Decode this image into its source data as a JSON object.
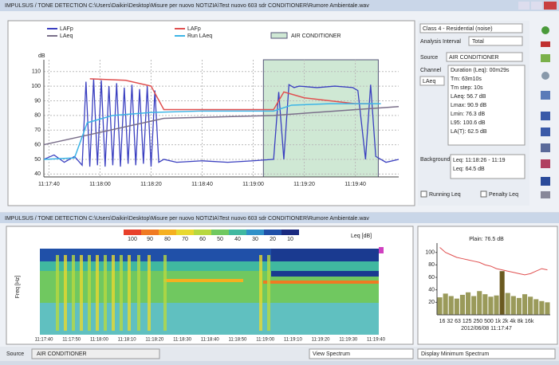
{
  "top_window": {
    "title": "IMPULSUS / TONE DETECTION C:\\Users\\Daikin\\Desktop\\Misure per nuovo NOTIZIA\\Test nuovo 603 sdr CONDITIONER\\Rumore Ambientale.wav"
  },
  "bottom_window": {
    "title": "IMPULSUS / TONE DETECTION C:\\Users\\Daikin\\Desktop\\Misure per nuovo NOTIZIA\\Test nuovo 603 sdr CONDITIONER\\Rumore Ambientale.wav"
  },
  "panel": {
    "class": "Class 4 - Residential (noise)",
    "interval_label": "Analysis Interval",
    "interval": "Total",
    "source_label": "Source",
    "source": "AIR CONDITIONER",
    "channel_label": "Channel",
    "channel": "LAeq",
    "results": [
      "Duration (Leq): 00m29s",
      "Tm: 63m10s",
      "Tm step: 10s",
      "LAeq: 56.7 dB",
      "Lmax: 90.9 dB",
      "Lmin: 76.3 dB",
      "L95: 100.6 dB",
      "LA(T): 62.5 dB"
    ],
    "background_label": "Background",
    "background": [
      "Leq: 11:18:26 - 11:19",
      "Leq: 64.5 dB"
    ],
    "running_leq": "Running Leq",
    "penalty_leq": "Penalty Leq"
  },
  "chart_data": [
    {
      "type": "line",
      "y_label": "dB",
      "xlim": [
        40658,
        40797
      ],
      "ylim": [
        38,
        118
      ],
      "xticks": [
        {
          "value": 40660,
          "label": "11:17:40"
        },
        {
          "value": 40680,
          "label": "11:18:00"
        },
        {
          "value": 40700,
          "label": "11:18:20"
        },
        {
          "value": 40720,
          "label": "11:18:40"
        },
        {
          "value": 40740,
          "label": "11:19:00"
        },
        {
          "value": 40760,
          "label": "11:19:20"
        },
        {
          "value": 40780,
          "label": "11:19:40"
        }
      ],
      "yticks": [
        40,
        50,
        60,
        70,
        80,
        90,
        100,
        110
      ],
      "grid": true,
      "series": [
        {
          "name": "LAFp",
          "color": "#3a3fc0",
          "x": [
            40658,
            40662,
            40666,
            40670,
            40673,
            40674.5,
            40676,
            40677.5,
            40679,
            40680.5,
            40682,
            40683.5,
            40685,
            40686.5,
            40688,
            40689.5,
            40691,
            40692.5,
            40694,
            40695.5,
            40697,
            40698.5,
            40700,
            40701.5,
            40703,
            40705,
            40710,
            40720,
            40730,
            40740,
            40748,
            40750,
            40752,
            40754,
            40756,
            40758,
            40765,
            40772,
            40779,
            40781,
            40784,
            40786,
            40788,
            40792,
            40797
          ],
          "values": [
            50,
            53,
            48,
            52,
            46,
            103,
            45,
            105,
            46,
            104,
            45,
            100,
            46,
            102,
            45,
            99,
            47,
            101,
            46,
            98,
            47,
            100,
            45,
            97,
            48,
            50,
            48,
            49,
            48,
            49,
            50,
            96,
            50,
            101,
            99,
            100,
            99,
            100,
            99,
            97,
            50,
            101,
            52,
            48,
            50
          ]
        },
        {
          "name": "LAeq",
          "color": "#7a6f8a",
          "x": [
            40658,
            40705,
            40748,
            40797
          ],
          "values": [
            60,
            78,
            80,
            86
          ]
        },
        {
          "name": "LAFp",
          "color": "#e05050",
          "x": [
            40676,
            40690,
            40700,
            40705,
            40748,
            40752,
            40760,
            40780,
            40786
          ],
          "values": [
            105,
            104,
            100,
            84,
            84,
            96,
            92,
            88,
            88
          ]
        },
        {
          "name": "Run LAeq",
          "color": "#3cb4e6",
          "x": [
            40658,
            40670,
            40675,
            40685,
            40700,
            40720,
            40748,
            40755,
            40770,
            40790
          ],
          "values": [
            50,
            51,
            75,
            80,
            82,
            83,
            83,
            87,
            88,
            88
          ]
        }
      ],
      "region": {
        "name": "AIR CONDITIONER",
        "color": "#cfe8d4",
        "x": [
          40744,
          40789
        ]
      }
    },
    {
      "type": "bar",
      "title": "Plain: 76.5 dB",
      "ylim": [
        0,
        115
      ],
      "yticks": [
        20,
        40,
        60,
        80,
        100
      ],
      "color": "#9a9a5a",
      "highlight_color": "#6b5a20",
      "values": [
        28,
        34,
        30,
        26,
        32,
        36,
        30,
        38,
        33,
        29,
        31,
        70,
        35,
        30,
        27,
        33,
        29,
        25,
        22,
        20
      ],
      "curve": {
        "color": "#e05050",
        "values": [
          108,
          100,
          96,
          92,
          90,
          88,
          86,
          84,
          80,
          78,
          74,
          72,
          70,
          68,
          66,
          64,
          66,
          70,
          74,
          72
        ]
      },
      "x_labels": "16  32  63 125 250 500 1k 2k 4k 8k 16k",
      "date": "2012/06/08 11:17:47"
    }
  ],
  "spectrogram": {
    "y_label": "Freq [Hz]",
    "colorbar_label": "Leq [dB]",
    "colorbar_ticks": [
      100,
      90,
      80,
      70,
      60,
      50,
      40,
      30,
      20,
      10
    ],
    "colorbar_colors": [
      "#e8402a",
      "#f07a22",
      "#f5b020",
      "#e8d830",
      "#b8d840",
      "#70c860",
      "#40b8a0",
      "#3090c8",
      "#2050a8",
      "#1a2a80"
    ],
    "xticks": [
      "11:17:40",
      "11:17:50",
      "11:18:00",
      "11:18:10",
      "11:18:20",
      "11:18:30",
      "11:18:40",
      "11:18:50",
      "11:19:00",
      "11:19:10",
      "11:19:20",
      "11:19:30",
      "11:19:40"
    ]
  },
  "footer": {
    "source_label": "Source",
    "source": "AIR CONDITIONER",
    "view": "View Spectrum",
    "display": "Display Minimum Spectrum"
  }
}
